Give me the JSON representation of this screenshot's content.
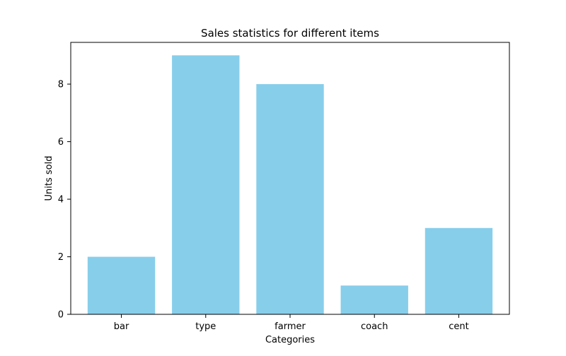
{
  "chart_data": {
    "type": "bar",
    "title": "Sales statistics for different items",
    "xlabel": "Categories",
    "ylabel": "Units sold",
    "categories": [
      "bar",
      "type",
      "farmer",
      "coach",
      "cent"
    ],
    "values": [
      2,
      9,
      8,
      1,
      3
    ],
    "ylim": [
      0,
      9.45
    ],
    "yticks": [
      0,
      2,
      4,
      6,
      8
    ],
    "bar_color": "#87CEEB",
    "grid": false,
    "legend": "none"
  }
}
